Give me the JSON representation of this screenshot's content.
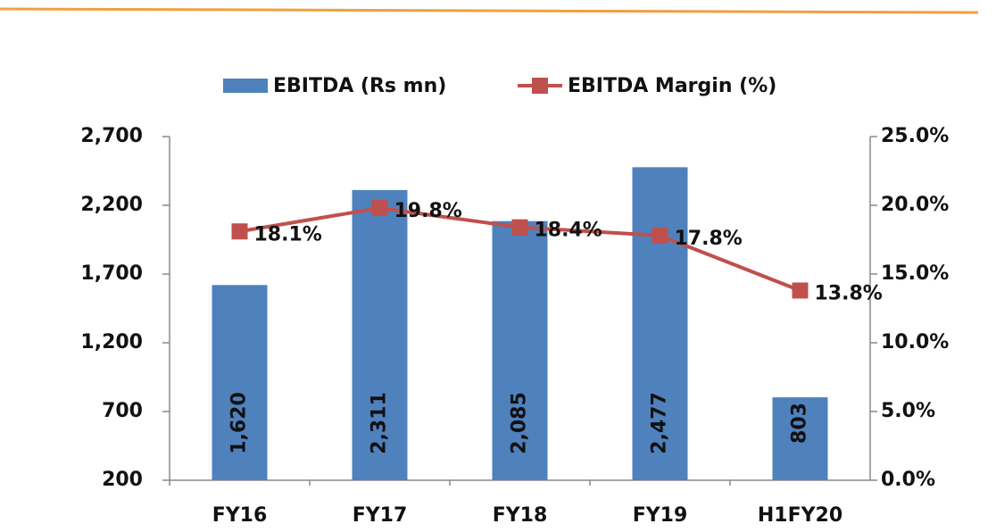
{
  "chart_data": {
    "type": "bar",
    "categories": [
      "FY16",
      "FY17",
      "FY18",
      "FY19",
      "H1FY20"
    ],
    "series": [
      {
        "name": "EBITDA (Rs mn)",
        "type": "bar",
        "color": "#4f81bd",
        "values": [
          1620,
          2311,
          2085,
          2477,
          803
        ],
        "value_labels": [
          "1,620",
          "2,311",
          "2,085",
          "2,477",
          "803"
        ]
      },
      {
        "name": "EBITDA Margin (%)",
        "type": "line",
        "axis": "y2",
        "color": "#c0504d",
        "values": [
          18.1,
          19.8,
          18.4,
          17.8,
          13.8
        ],
        "value_labels": [
          "18.1%",
          "19.8%",
          "18.4%",
          "17.8%",
          "13.8%"
        ]
      }
    ],
    "ylim": [
      200,
      2700
    ],
    "yticks": [
      200,
      700,
      {
        "value": 1200,
        "label": "1,200"
      },
      {
        "value": 1700,
        "label": "1,700"
      },
      {
        "value": 2200,
        "label": "2,200"
      },
      {
        "value": 2700,
        "label": "2,700"
      }
    ],
    "y2lim": [
      0,
      25
    ],
    "y2ticks": [
      {
        "value": 0,
        "label": "0.0%"
      },
      {
        "value": 5,
        "label": "5.0%"
      },
      {
        "value": 10,
        "label": "10.0%"
      },
      {
        "value": 15,
        "label": "15.0%"
      },
      {
        "value": 20,
        "label": "20.0%"
      },
      {
        "value": 25,
        "label": "25.0%"
      }
    ],
    "grid": false,
    "legend": "top"
  }
}
